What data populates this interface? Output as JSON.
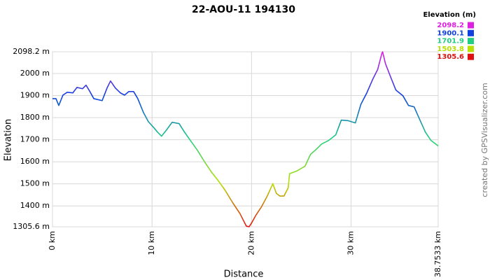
{
  "chart_data": {
    "type": "line",
    "title": "22-AOU-11 194130",
    "x_label": "Distance",
    "y_label": "Elevation",
    "credit": "created by GPSVisualizer.com",
    "grid": true,
    "xlim": [
      0,
      38.7533
    ],
    "xticks": [
      {
        "value": 0,
        "label": "0 km"
      },
      {
        "value": 10,
        "label": "10 km"
      },
      {
        "value": 20,
        "label": "20 km"
      },
      {
        "value": 30,
        "label": "30 km"
      },
      {
        "value": 38.7533,
        "label": "38.7533 km"
      }
    ],
    "ylim": [
      1305.6,
      2098.2
    ],
    "yticks": [
      {
        "value": 1305.6,
        "label": "1305.6 m"
      },
      {
        "value": 1400,
        "label": "1400 m"
      },
      {
        "value": 1500,
        "label": "1500 m"
      },
      {
        "value": 1600,
        "label": "1600 m"
      },
      {
        "value": 1700,
        "label": "1700 m"
      },
      {
        "value": 1800,
        "label": "1800 m"
      },
      {
        "value": 1900,
        "label": "1900 m"
      },
      {
        "value": 2000,
        "label": "2000 m"
      },
      {
        "value": 2098.2,
        "label": "2098.2 m"
      }
    ],
    "color_scale": {
      "title": "Elevation (m)",
      "stops": [
        {
          "value": 2098.2,
          "color": "#e020e0"
        },
        {
          "value": 1900.1,
          "color": "#1040e0"
        },
        {
          "value": 1701.9,
          "color": "#20d080"
        },
        {
          "value": 1503.8,
          "color": "#b8e000"
        },
        {
          "value": 1305.6,
          "color": "#e01010"
        }
      ]
    },
    "x": [
      0,
      0.35,
      0.63,
      1.05,
      1.48,
      2.04,
      2.46,
      3.02,
      3.37,
      3.72,
      4.15,
      4.99,
      5.48,
      5.83,
      6.32,
      6.82,
      7.24,
      7.66,
      8.15,
      8.57,
      9.14,
      9.63,
      10.19,
      10.54,
      10.96,
      11.45,
      12.02,
      12.72,
      13.21,
      13.85,
      14.55,
      15.25,
      15.95,
      16.66,
      17.36,
      18.13,
      18.83,
      19.47,
      19.75,
      20.03,
      20.45,
      21.01,
      21.58,
      22.14,
      22.49,
      22.84,
      23.26,
      23.68,
      23.82,
      24.53,
      25.37,
      25.93,
      26.49,
      27.06,
      27.76,
      28.46,
      29.02,
      29.73,
      30.43,
      30.99,
      31.55,
      32.19,
      32.68,
      33.1,
      33.17,
      33.45,
      33.94,
      34.5,
      35.21,
      35.77,
      36.33,
      36.89,
      37.46,
      38.02,
      38.75
    ],
    "values": [
      1886,
      1886,
      1855,
      1902,
      1915,
      1912,
      1937,
      1931,
      1947,
      1921,
      1886,
      1877,
      1934,
      1966,
      1934,
      1912,
      1902,
      1918,
      1918,
      1886,
      1823,
      1782,
      1754,
      1735,
      1716,
      1744,
      1779,
      1773,
      1738,
      1697,
      1653,
      1602,
      1555,
      1514,
      1470,
      1413,
      1366,
      1309,
      1305.6,
      1325,
      1359,
      1397,
      1445,
      1501,
      1457,
      1445,
      1445,
      1482,
      1546,
      1558,
      1580,
      1634,
      1656,
      1681,
      1697,
      1722,
      1789,
      1786,
      1776,
      1861,
      1909,
      1975,
      2019,
      2092,
      2098.2,
      2045,
      1988,
      1925,
      1899,
      1855,
      1849,
      1792,
      1735,
      1697,
      1672
    ]
  }
}
